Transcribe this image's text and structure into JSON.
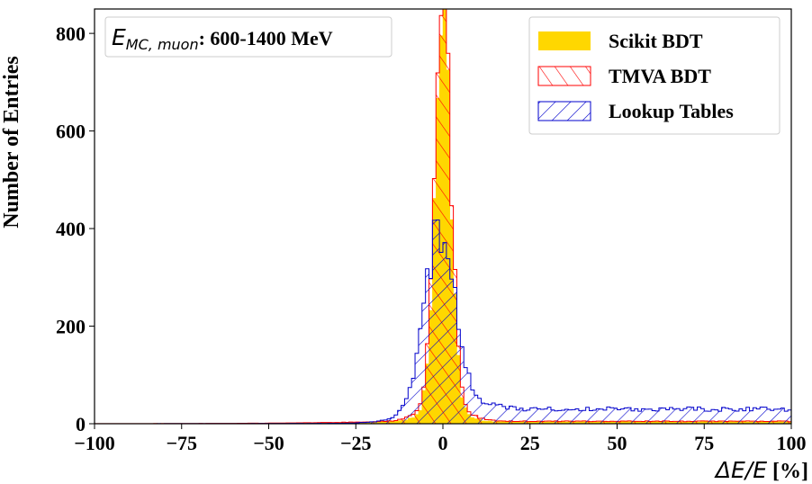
{
  "chart_data": {
    "type": "histogram",
    "ylabel": "Number of Entries",
    "xlabel_math": "ΔE/E",
    "xlabel_unit": " [%]",
    "xlim": [
      -100,
      100
    ],
    "ylim": [
      0,
      850
    ],
    "xticks": [
      -100,
      -75,
      -50,
      -25,
      0,
      25,
      50,
      75,
      100
    ],
    "xtick_labels": [
      "−100",
      "−75",
      "−50",
      "−25",
      "0",
      "25",
      "50",
      "75",
      "100"
    ],
    "yticks": [
      0,
      200,
      400,
      600,
      800
    ],
    "ytick_labels": [
      "0",
      "200",
      "400",
      "600",
      "800"
    ],
    "annotation": {
      "main": "E",
      "subscript": "MC, muon",
      "rest": ": 600-1400 MeV"
    },
    "legend_position": "top-right",
    "bins": {
      "start": -100,
      "width": 1
    },
    "series": [
      {
        "name": "Scikit BDT",
        "style": "filled",
        "color": "#FFD700",
        "peak_mean": 0.0,
        "peak_sigma": 2.2,
        "peak_amp": 805,
        "core_mean": 0.5,
        "core_sigma": 5.0,
        "core_amp": 40,
        "tail_left": 8,
        "tail_right": 4
      },
      {
        "name": "TMVA BDT",
        "style": "hatch-forward",
        "color": "#FF0000",
        "peak_mean": 0.0,
        "peak_sigma": 2.3,
        "peak_amp": 795,
        "core_mean": 0.5,
        "core_sigma": 5.5,
        "core_amp": 45,
        "tail_left": 9,
        "tail_right": 5
      },
      {
        "name": "Lookup Tables",
        "style": "hatch-back",
        "color": "#0000CC",
        "peak_mean": -1.0,
        "peak_sigma": 4.5,
        "peak_amp": 350,
        "core_mean": 0.0,
        "core_sigma": 9.0,
        "core_amp": 30,
        "tail_left": 3,
        "tail_right": 30
      }
    ]
  }
}
